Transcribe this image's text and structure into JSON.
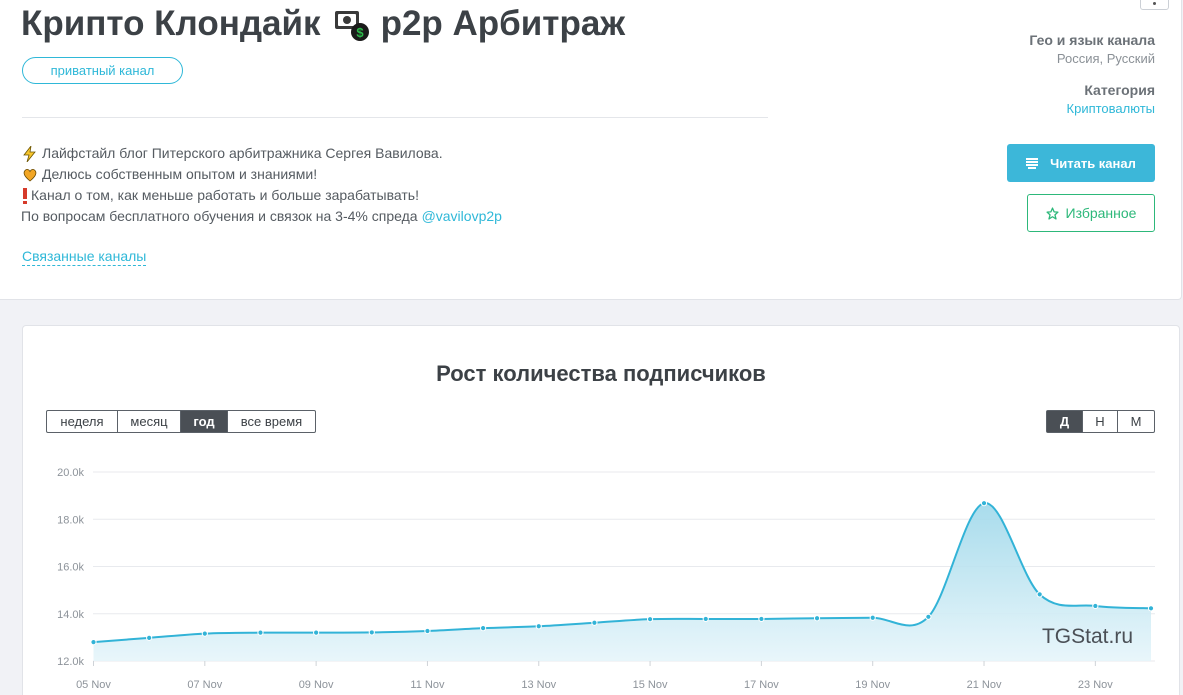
{
  "channel": {
    "title_part1": "Крипто Клондайк",
    "title_part2": "p2p Арбитраж",
    "badge": "приватный канал",
    "description": [
      {
        "icon": "lightning-icon",
        "text": "Лайфстайл блог Питерского арбитражника Сергея Вавилова."
      },
      {
        "icon": "heart-icon",
        "text": "Делюсь собственным опытом и знаниями!"
      },
      {
        "icon": "exclamation-icon",
        "text": "Канал о том, как меньше работать и больше зарабатывать!"
      }
    ],
    "contact_text": "По вопросам бесплатного обучения и связок на 3-4% спреда",
    "contact_link": "@vavilovp2p",
    "related_link": "Связанные каналы"
  },
  "meta": {
    "geo_label": "Гео и язык канала",
    "geo_value": "Россия, Русский",
    "category_label": "Категория",
    "category_value": "Криптовалюты"
  },
  "buttons": {
    "read": "Читать канал",
    "favorite": "Избранное"
  },
  "chart_section": {
    "title": "Рост количества подписчиков",
    "period_tabs": [
      "неделя",
      "месяц",
      "год",
      "все время"
    ],
    "period_active": "год",
    "granularity_tabs": [
      "Д",
      "Н",
      "М"
    ],
    "granularity_active": "Д",
    "watermark": "TGStat.ru"
  },
  "chart_data": {
    "type": "area",
    "x": [
      "05 Nov",
      "06 Nov",
      "07 Nov",
      "08 Nov",
      "09 Nov",
      "10 Nov",
      "11 Nov",
      "12 Nov",
      "13 Nov",
      "14 Nov",
      "15 Nov",
      "16 Nov",
      "17 Nov",
      "18 Nov",
      "19 Nov",
      "20 Nov",
      "21 Nov",
      "22 Nov",
      "23 Nov",
      "24 Nov"
    ],
    "x_tick_labels": [
      "05 Nov",
      "07 Nov",
      "09 Nov",
      "11 Nov",
      "13 Nov",
      "15 Nov",
      "17 Nov",
      "19 Nov",
      "21 Nov",
      "23 Nov"
    ],
    "values": [
      12800,
      12980,
      13160,
      13200,
      13200,
      13210,
      13270,
      13390,
      13470,
      13620,
      13770,
      13780,
      13780,
      13810,
      13830,
      13870,
      18680,
      14820,
      14330,
      14230
    ],
    "y_tick_labels": [
      "12.0k",
      "14.0k",
      "16.0k",
      "18.0k",
      "20.0k"
    ],
    "ylim": [
      12000,
      20000
    ],
    "grid": true,
    "color": "#32b3d7"
  }
}
